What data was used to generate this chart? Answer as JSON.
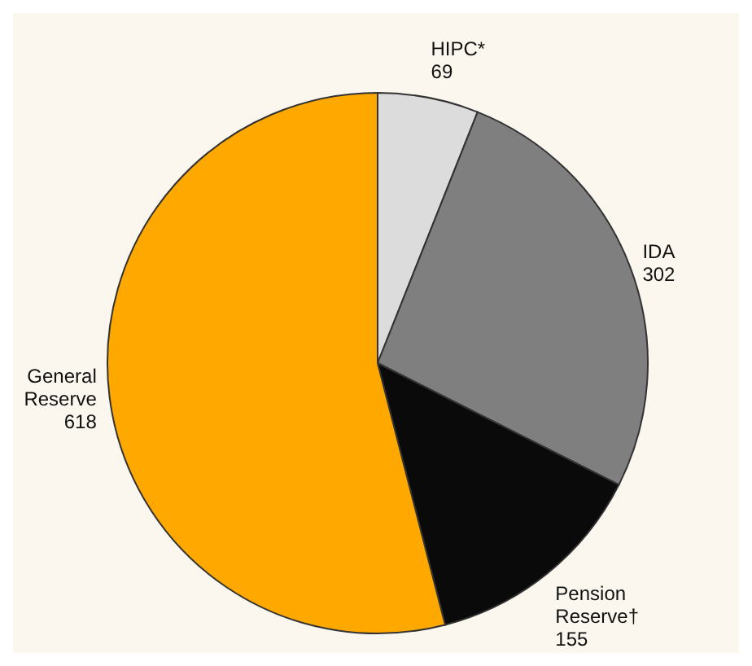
{
  "chart_data": {
    "type": "pie",
    "categories": [
      "HIPC*",
      "IDA",
      "Pension Reserve†",
      "General Reserve"
    ],
    "values": [
      69,
      302,
      155,
      618
    ],
    "colors": [
      "#dcdcdc",
      "#7f7f7f",
      "#0a0a0a",
      "#ffa800"
    ],
    "data_labels": true,
    "legend": false
  }
}
